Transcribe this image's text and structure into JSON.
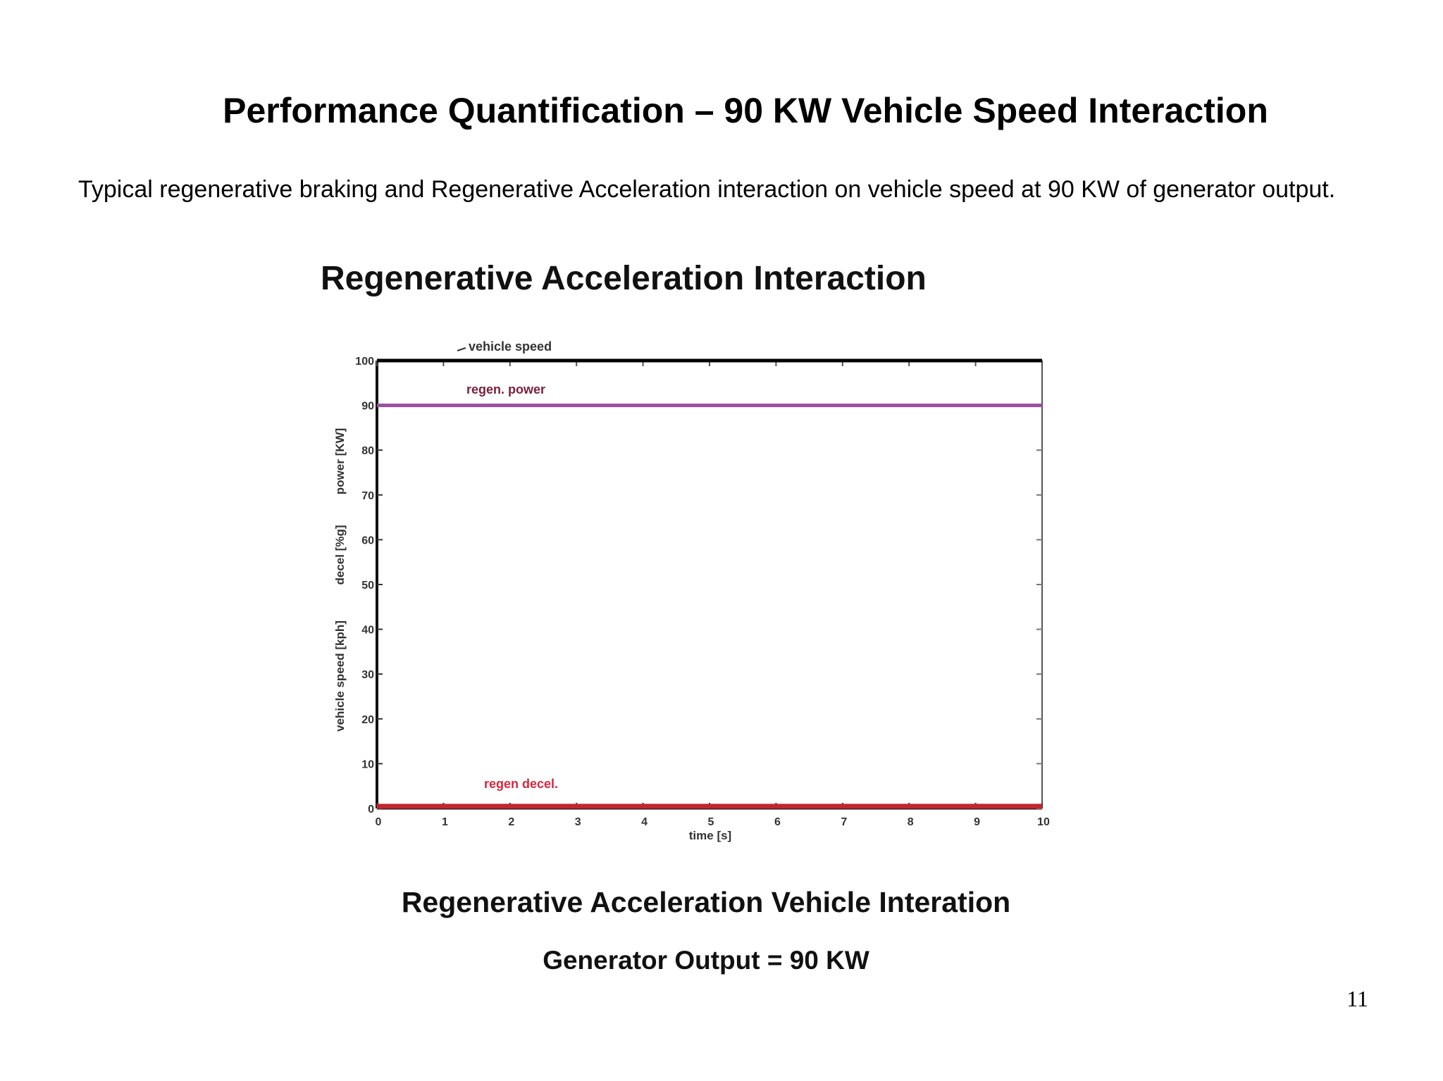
{
  "slide": {
    "title": "Performance Quantification – 90 KW Vehicle Speed Interaction",
    "description": "Typical regenerative braking and Regenerative Acceleration interaction on vehicle speed at 90 KW of generator output.",
    "page_number": "11"
  },
  "chart_data": {
    "type": "line",
    "title": "Regenerative Acceleration Interaction",
    "xlabel": "time [s]",
    "ylabel_parts": [
      "vehicle speed [kph]",
      "decel [%g]",
      "power [KW]"
    ],
    "xlim": [
      0,
      10
    ],
    "ylim": [
      0,
      100
    ],
    "xticks": [
      0,
      1,
      2,
      3,
      4,
      5,
      6,
      7,
      8,
      9,
      10
    ],
    "yticks": [
      0,
      10,
      20,
      30,
      40,
      50,
      60,
      70,
      80,
      90,
      100
    ],
    "grid": false,
    "series": [
      {
        "name": "vehicle speed",
        "color": "#000000",
        "x": [
          0,
          10
        ],
        "y": [
          100,
          100
        ]
      },
      {
        "name": "regen. power",
        "color": "#9b4f9e",
        "x": [
          0,
          10
        ],
        "y": [
          90,
          90
        ]
      },
      {
        "name": "regen decel.",
        "color": "#c1272d",
        "x": [
          0,
          10
        ],
        "y": [
          0.5,
          0.5
        ]
      }
    ],
    "annotations": [
      {
        "text": "vehicle speed",
        "color": "#333333"
      },
      {
        "text": "regen. power",
        "color": "#7a1f3d"
      },
      {
        "text": "regen decel.",
        "color": "#d7263d"
      }
    ]
  },
  "captions": {
    "line1": "Regenerative Acceleration Vehicle Interation",
    "line2": "Generator Output = 90 KW"
  }
}
